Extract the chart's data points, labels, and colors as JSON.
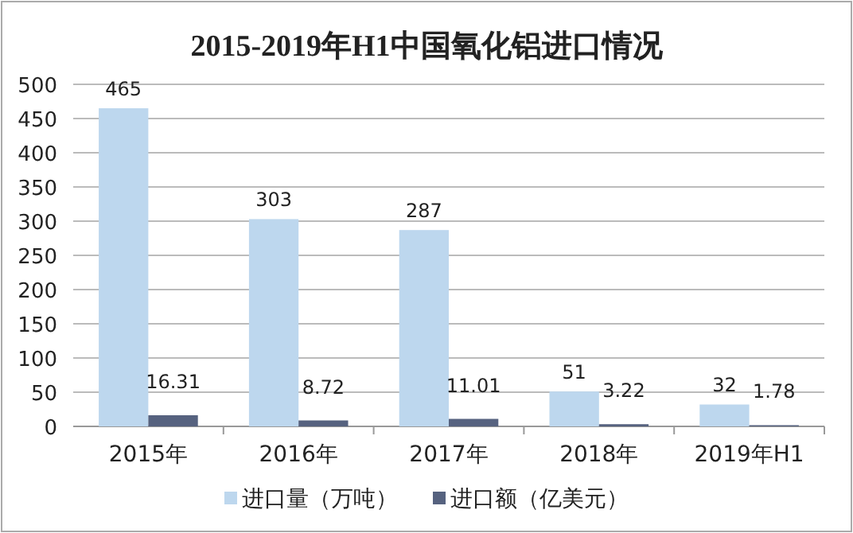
{
  "chart_data": {
    "type": "bar",
    "title": "2015-2019年H1中国氧化铝进口情况",
    "categories": [
      "2015年",
      "2016年",
      "2017年",
      "2018年",
      "2019年H1"
    ],
    "series": [
      {
        "name": "进口量（万吨）",
        "color": "#bdd7ee",
        "values": [
          465,
          303,
          287,
          51,
          32
        ]
      },
      {
        "name": "进口额（亿美元）",
        "color": "#56627f",
        "values": [
          16.31,
          8.72,
          11.01,
          3.22,
          1.78
        ]
      }
    ],
    "ylim": [
      0,
      500
    ],
    "yticks": [
      0,
      50,
      100,
      150,
      200,
      250,
      300,
      350,
      400,
      450,
      500
    ],
    "grid": "y",
    "legend": "bottom",
    "data_labels": true
  }
}
